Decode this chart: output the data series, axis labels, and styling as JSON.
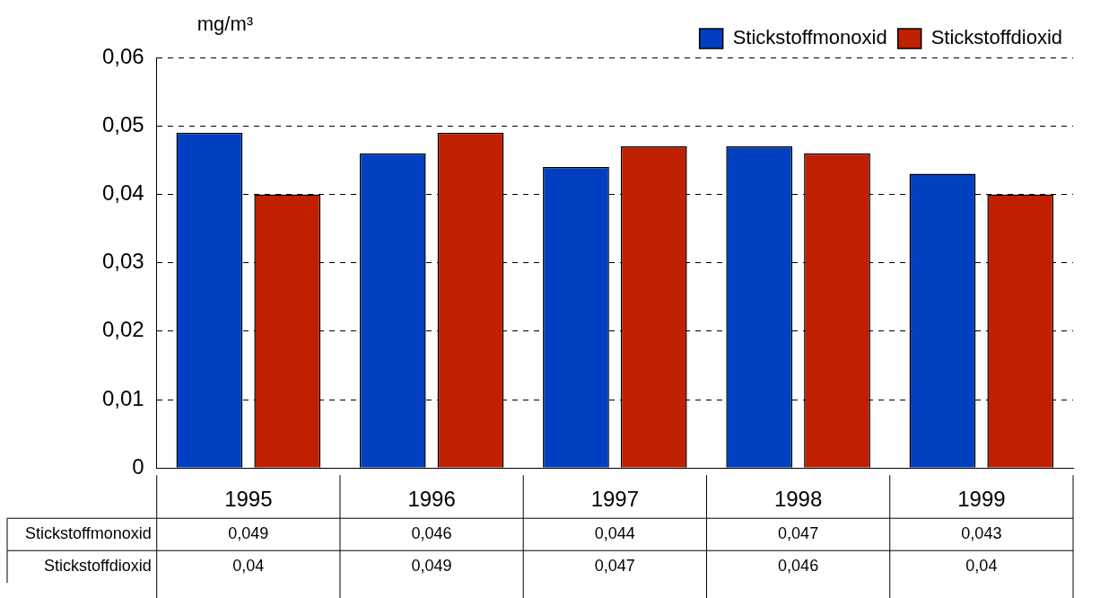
{
  "chart_data": {
    "type": "bar",
    "ylabel": "mg/m³",
    "categories": [
      "1995",
      "1996",
      "1997",
      "1998",
      "1999"
    ],
    "series": [
      {
        "name": "Stickstoffmonoxid",
        "color": "#0040c0",
        "values": [
          0.049,
          0.046,
          0.044,
          0.047,
          0.043
        ],
        "value_labels": [
          "0,049",
          "0,046",
          "0,044",
          "0,047",
          "0,043"
        ]
      },
      {
        "name": "Stickstoffdioxid",
        "color": "#c02000",
        "values": [
          0.04,
          0.049,
          0.047,
          0.046,
          0.04
        ],
        "value_labels": [
          "0,04",
          "0,049",
          "0,047",
          "0,046",
          "0,04"
        ]
      }
    ],
    "ylim": [
      0,
      0.06
    ],
    "yticks": [
      0,
      {
        "value": 0.01,
        "label": "0,01"
      },
      {
        "value": 0.02,
        "label": "0,02"
      },
      {
        "value": 0.03,
        "label": "0,03"
      },
      {
        "value": 0.04,
        "label": "0,04"
      },
      {
        "value": 0.05,
        "label": "0,05"
      },
      {
        "value": 0.06,
        "label": "0,06"
      }
    ],
    "grid": "y",
    "legend": "top right"
  }
}
